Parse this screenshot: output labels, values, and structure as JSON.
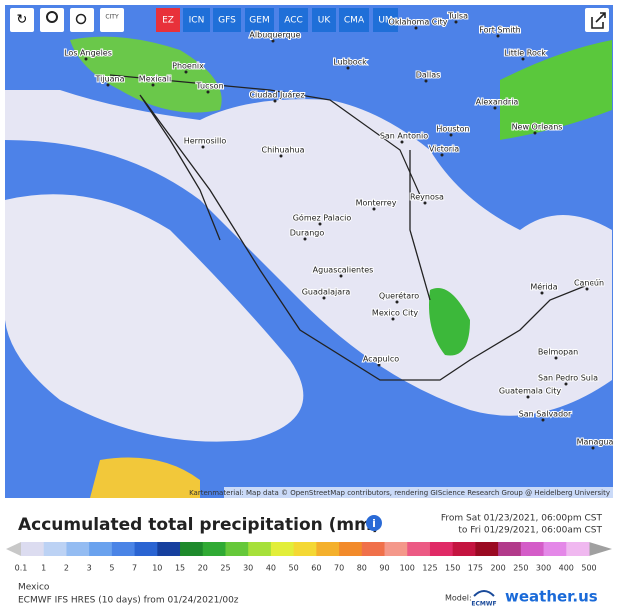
{
  "toolbar": {
    "city_icon": "CITY",
    "models": [
      "EZ",
      "ICN",
      "GFS",
      "GEM",
      "ACC",
      "UK",
      "CMA",
      "UM"
    ]
  },
  "map": {
    "cities": [
      "Los Angeles",
      "Phoenix",
      "Albuquerque",
      "Lubbock",
      "Oklahoma City",
      "Tulsa",
      "Fort Smith",
      "Little Rock",
      "Dallas",
      "Tijuana",
      "Mexicali",
      "Tucson",
      "Ciudad Juárez",
      "Alexandria",
      "Hermosillo",
      "San Antonio",
      "Houston",
      "New Orleans",
      "Chihuahua",
      "Victoria",
      "Reynosa",
      "Monterrey",
      "Gómez Palacio",
      "Durango",
      "Aguascalientes",
      "Guadalajara",
      "Querétaro",
      "Mexico City",
      "Mérida",
      "Cancún",
      "Acapulco",
      "Belmopan",
      "Guatemala City",
      "San Pedro Sula",
      "San Salvador",
      "Managua"
    ],
    "attribution": "Kartenmaterial: Map data © OpenStreetMap contributors, rendering GIScience Research Group @ Heidelberg University"
  },
  "header": {
    "title": "Accumulated total precipitation (mm)",
    "date_from": "From Sat 01/23/2021, 06:00pm CST",
    "date_to": "to Fri 01/29/2021, 06:00am CST"
  },
  "legend": {
    "labels": [
      "0.1",
      "1",
      "2",
      "3",
      "5",
      "7",
      "10",
      "15",
      "20",
      "25",
      "30",
      "40",
      "50",
      "60",
      "70",
      "80",
      "90",
      "100",
      "125",
      "150",
      "175",
      "200",
      "250",
      "300",
      "400",
      "500"
    ],
    "colors": [
      "#dcdcf0",
      "#bcd2f4",
      "#94bcf2",
      "#6aa2ee",
      "#4a84e6",
      "#2a64d2",
      "#16409e",
      "#1e8a2c",
      "#30aa34",
      "#66c83a",
      "#a6e03a",
      "#e2ee3a",
      "#f4d834",
      "#f4b02c",
      "#f28a2a",
      "#f0704a",
      "#f4988a",
      "#ec5a84",
      "#e02a66",
      "#c41440",
      "#9a0a22",
      "#b23a8a",
      "#d45cc8",
      "#e488e8",
      "#f0b8f0"
    ]
  },
  "footer": {
    "region": "Mexico",
    "model_info": "ECMWF IFS HRES (10 days) from 01/24/2021/00z",
    "model_label": "Model:",
    "model_logo": "ECMWF",
    "brand": "weather.us"
  }
}
